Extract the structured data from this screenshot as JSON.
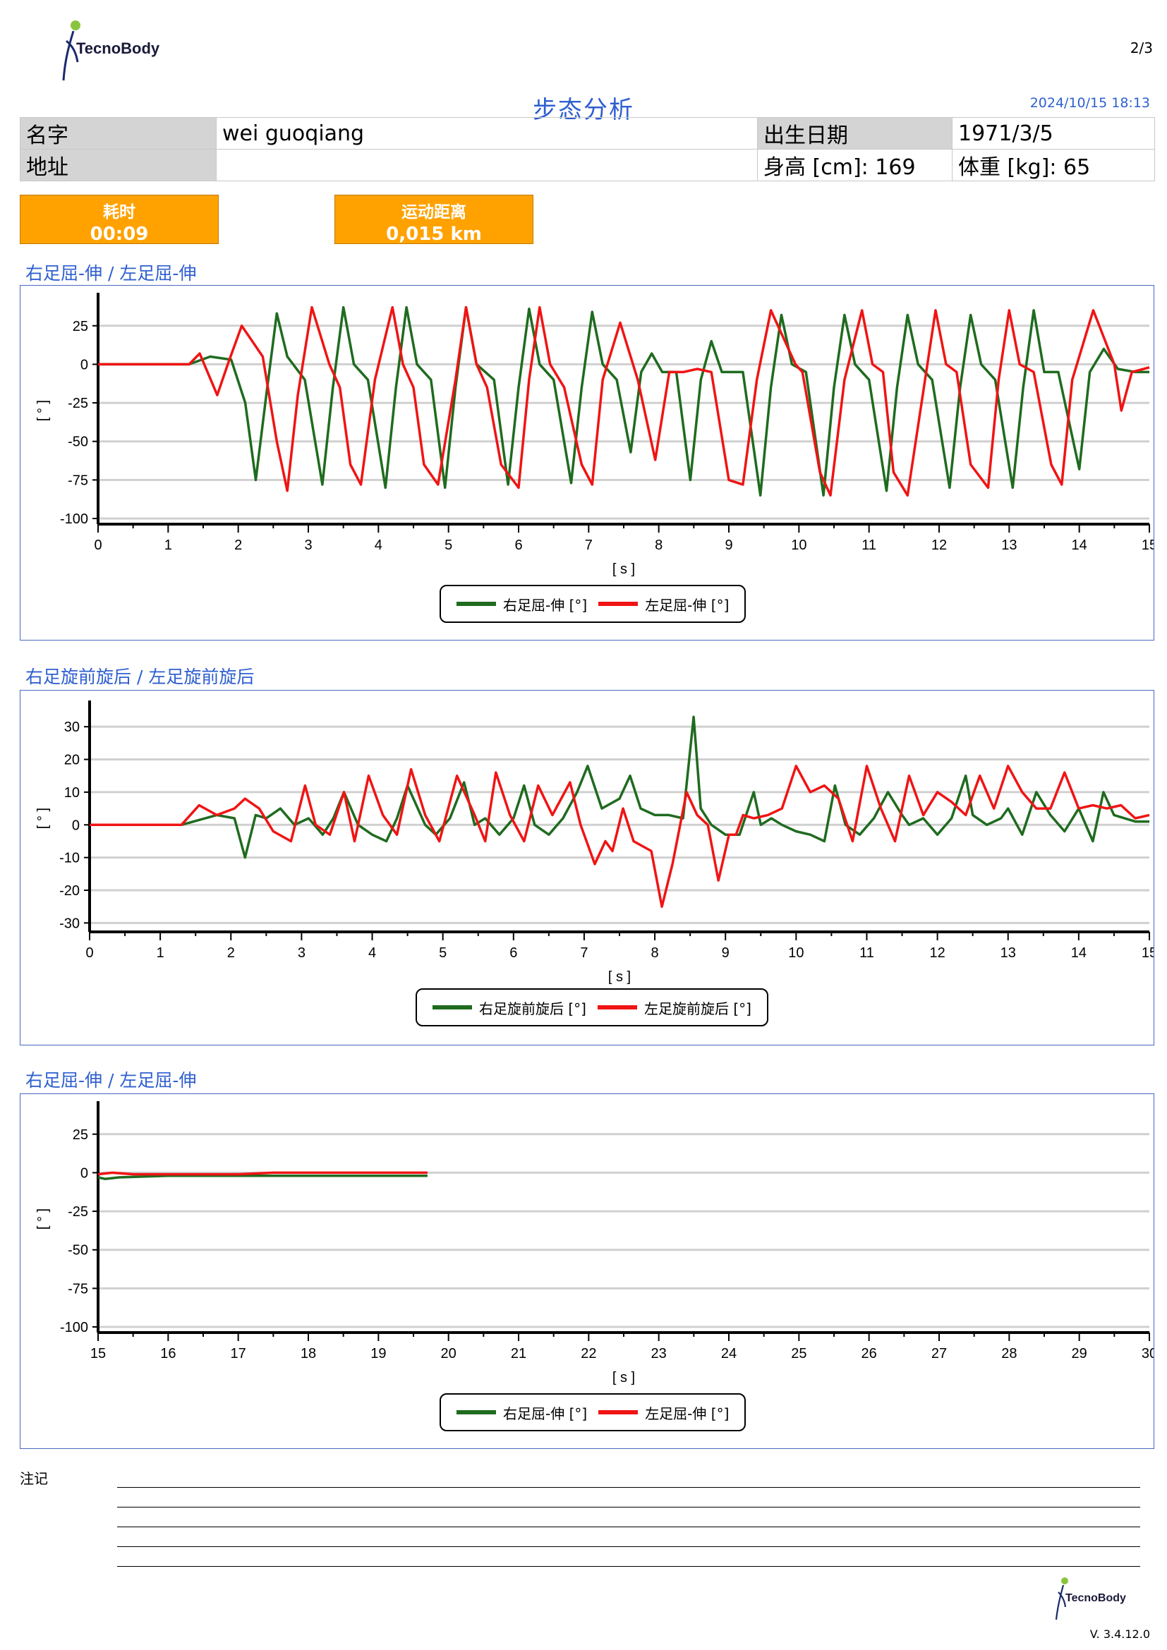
{
  "header": {
    "brand": "TecnoBody",
    "page": "2/3",
    "title": "步态分析",
    "datetime": "2024/10/15 18:13"
  },
  "patient": {
    "name_label": "名字",
    "name_value": "wei guoqiang",
    "address_label": "地址",
    "address_value": "",
    "dob_label": "出生日期",
    "dob_value": "1971/3/5",
    "height_text": "身高 [cm]: 169",
    "weight_text": "体重 [kg]: 65"
  },
  "stats": [
    {
      "label": "耗时",
      "value": "00:09"
    },
    {
      "label": "运动距离",
      "value": "0,015 km"
    }
  ],
  "colors": {
    "right": "#1f6b1f",
    "left": "#f01414",
    "accent": "#2f5fd0",
    "badge": "#ffa200"
  },
  "charts": [
    {
      "section_title": "右足屈-伸 / 左足屈-伸",
      "legend": [
        "右足屈-伸 [°]",
        "左足屈-伸 [°]"
      ],
      "ylabel": "[ ° ]",
      "xlabel": "[ s ]"
    },
    {
      "section_title": "右足旋前旋后 / 左足旋前旋后",
      "legend": [
        "右足旋前旋后 [°]",
        "左足旋前旋后 [°]"
      ],
      "ylabel": "[ ° ]",
      "xlabel": "[ s ]"
    },
    {
      "section_title": "右足屈-伸 / 左足屈-伸",
      "legend": [
        "右足屈-伸 [°]",
        "左足屈-伸 [°]"
      ],
      "ylabel": "[ ° ]",
      "xlabel": "[ s ]"
    }
  ],
  "chart_data": [
    {
      "type": "line",
      "title": "右足屈-伸 / 左足屈-伸",
      "xlabel": "[ s ]",
      "ylabel": "[ ° ]",
      "xlim": [
        0,
        15
      ],
      "ylim": [
        -100,
        40
      ],
      "xticks": [
        0,
        1,
        2,
        3,
        4,
        5,
        6,
        7,
        8,
        9,
        10,
        11,
        12,
        13,
        14,
        15
      ],
      "yticks": [
        25,
        0,
        -25,
        -50,
        -75,
        -100
      ],
      "grid": true,
      "legend_position": "bottom-center",
      "series": [
        {
          "name": "右足屈-伸 [°]",
          "color": "#1f6b1f",
          "x": [
            0,
            1.3,
            1.6,
            1.9,
            2.1,
            2.25,
            2.4,
            2.55,
            2.7,
            2.95,
            3.2,
            3.35,
            3.5,
            3.65,
            3.85,
            4.1,
            4.25,
            4.4,
            4.55,
            4.75,
            4.95,
            5.1,
            5.25,
            5.4,
            5.65,
            5.85,
            6.0,
            6.15,
            6.3,
            6.5,
            6.75,
            6.9,
            7.05,
            7.2,
            7.4,
            7.6,
            7.75,
            7.9,
            8.05,
            8.25,
            8.45,
            8.6,
            8.75,
            8.9,
            9.2,
            9.45,
            9.6,
            9.75,
            9.9,
            10.1,
            10.35,
            10.5,
            10.65,
            10.8,
            11.0,
            11.25,
            11.4,
            11.55,
            11.7,
            11.9,
            12.15,
            12.3,
            12.45,
            12.6,
            12.8,
            13.05,
            13.2,
            13.35,
            13.5,
            13.7,
            14.0,
            14.15,
            14.35,
            14.55,
            14.8,
            15.0
          ],
          "y": [
            0,
            0,
            5,
            3,
            -25,
            -75,
            -20,
            33,
            5,
            -10,
            -78,
            -15,
            37,
            0,
            -10,
            -80,
            -15,
            37,
            0,
            -10,
            -80,
            -15,
            37,
            0,
            -10,
            -78,
            -15,
            36,
            0,
            -10,
            -77,
            -15,
            34,
            0,
            -10,
            -57,
            -5,
            7,
            -5,
            -5,
            -75,
            -10,
            15,
            -5,
            -5,
            -85,
            -15,
            32,
            0,
            -5,
            -85,
            -15,
            32,
            0,
            -10,
            -82,
            -15,
            32,
            0,
            -10,
            -80,
            -15,
            32,
            0,
            -10,
            -80,
            -15,
            35,
            -5,
            -5,
            -68,
            -5,
            10,
            -3,
            -5,
            -5
          ]
        },
        {
          "name": "左足屈-伸 [°]",
          "color": "#f01414",
          "x": [
            0,
            1.3,
            1.45,
            1.7,
            1.85,
            2.05,
            2.35,
            2.55,
            2.7,
            2.85,
            3.05,
            3.3,
            3.45,
            3.6,
            3.75,
            3.95,
            4.2,
            4.35,
            4.5,
            4.65,
            4.85,
            5.1,
            5.25,
            5.4,
            5.55,
            5.75,
            6.0,
            6.15,
            6.3,
            6.45,
            6.65,
            6.9,
            7.05,
            7.2,
            7.45,
            7.7,
            7.95,
            8.15,
            8.35,
            8.55,
            8.75,
            9.0,
            9.2,
            9.4,
            9.6,
            9.95,
            10.05,
            10.3,
            10.45,
            10.65,
            10.9,
            11.05,
            11.2,
            11.35,
            11.55,
            11.8,
            11.95,
            12.1,
            12.25,
            12.45,
            12.7,
            12.85,
            13.0,
            13.15,
            13.35,
            13.6,
            13.75,
            13.9,
            14.2,
            14.5,
            14.6,
            14.75,
            15.0
          ],
          "y": [
            0,
            0,
            7,
            -20,
            0,
            25,
            5,
            -50,
            -82,
            -20,
            37,
            0,
            -15,
            -65,
            -78,
            -10,
            37,
            0,
            -15,
            -65,
            -78,
            -10,
            37,
            0,
            -15,
            -65,
            -80,
            -10,
            37,
            0,
            -15,
            -65,
            -78,
            -10,
            27,
            -10,
            -62,
            -5,
            -5,
            -3,
            -5,
            -75,
            -78,
            -10,
            35,
            0,
            -5,
            -70,
            -85,
            -10,
            35,
            0,
            -5,
            -70,
            -85,
            -10,
            35,
            0,
            -5,
            -65,
            -80,
            -10,
            35,
            0,
            -5,
            -65,
            -78,
            -10,
            35,
            0,
            -30,
            -5,
            -2
          ]
        }
      ]
    },
    {
      "type": "line",
      "title": "右足旋前旋后 / 左足旋前旋后",
      "xlabel": "[ s ]",
      "ylabel": "[ ° ]",
      "xlim": [
        0,
        15
      ],
      "ylim": [
        -31,
        35
      ],
      "xticks": [
        0,
        1,
        2,
        3,
        4,
        5,
        6,
        7,
        8,
        9,
        10,
        11,
        12,
        13,
        14,
        15
      ],
      "yticks": [
        30,
        20,
        10,
        0,
        -10,
        -20,
        -30
      ],
      "grid": true,
      "legend_position": "bottom-center",
      "series": [
        {
          "name": "右足旋前旋后 [°]",
          "color": "#1f6b1f",
          "x": [
            0,
            1.3,
            1.8,
            2.05,
            2.2,
            2.35,
            2.5,
            2.7,
            2.9,
            3.1,
            3.3,
            3.45,
            3.6,
            3.8,
            4.0,
            4.2,
            4.35,
            4.5,
            4.75,
            4.9,
            5.1,
            5.3,
            5.45,
            5.6,
            5.8,
            6.0,
            6.15,
            6.3,
            6.5,
            6.7,
            6.9,
            7.05,
            7.25,
            7.5,
            7.65,
            7.8,
            8.0,
            8.2,
            8.4,
            8.55,
            8.65,
            8.8,
            9.0,
            9.2,
            9.4,
            9.5,
            9.65,
            9.8,
            10.0,
            10.2,
            10.4,
            10.55,
            10.7,
            10.9,
            11.1,
            11.3,
            11.5,
            11.6,
            11.8,
            12.0,
            12.2,
            12.4,
            12.5,
            12.7,
            12.9,
            13.0,
            13.2,
            13.4,
            13.6,
            13.8,
            14.0,
            14.2,
            14.35,
            14.5,
            14.8,
            15.0
          ],
          "y": [
            0,
            0,
            3,
            2,
            -10,
            3,
            2,
            5,
            0,
            2,
            -3,
            2,
            10,
            0,
            -3,
            -5,
            2,
            12,
            0,
            -3,
            2,
            13,
            0,
            2,
            -3,
            2,
            12,
            0,
            -3,
            2,
            10,
            18,
            5,
            8,
            15,
            5,
            3,
            3,
            2,
            33,
            5,
            0,
            -3,
            -3,
            10,
            0,
            2,
            0,
            -2,
            -3,
            -5,
            12,
            0,
            -3,
            2,
            10,
            3,
            0,
            2,
            -3,
            2,
            15,
            3,
            0,
            2,
            5,
            -3,
            10,
            3,
            -2,
            5,
            -5,
            10,
            3,
            1,
            1
          ]
        },
        {
          "name": "左足旋前旋后 [°]",
          "color": "#f01414",
          "x": [
            0,
            1.3,
            1.55,
            1.8,
            2.05,
            2.2,
            2.4,
            2.6,
            2.85,
            3.05,
            3.2,
            3.4,
            3.6,
            3.75,
            3.95,
            4.15,
            4.35,
            4.55,
            4.75,
            4.95,
            5.2,
            5.45,
            5.6,
            5.75,
            5.95,
            6.15,
            6.35,
            6.55,
            6.8,
            6.95,
            7.15,
            7.3,
            7.4,
            7.55,
            7.7,
            7.95,
            8.1,
            8.25,
            8.45,
            8.6,
            8.75,
            8.9,
            9.05,
            9.15,
            9.25,
            9.4,
            9.6,
            9.8,
            10.0,
            10.2,
            10.4,
            10.6,
            10.8,
            11.0,
            11.2,
            11.4,
            11.6,
            11.8,
            12.0,
            12.2,
            12.4,
            12.6,
            12.8,
            13.0,
            13.2,
            13.4,
            13.6,
            13.8,
            14.0,
            14.2,
            14.4,
            14.6,
            14.8,
            15.0
          ],
          "y": [
            0,
            0,
            6,
            3,
            5,
            8,
            5,
            -2,
            -5,
            12,
            0,
            -3,
            10,
            -5,
            15,
            3,
            -3,
            17,
            3,
            -5,
            15,
            3,
            -5,
            16,
            3,
            -5,
            12,
            3,
            13,
            0,
            -12,
            -5,
            -8,
            5,
            -5,
            -8,
            -25,
            -12,
            10,
            3,
            0,
            -17,
            -3,
            -3,
            3,
            2,
            3,
            5,
            18,
            10,
            12,
            8,
            -5,
            18,
            5,
            -5,
            15,
            3,
            10,
            7,
            3,
            15,
            5,
            18,
            10,
            5,
            5,
            16,
            5,
            6,
            5,
            6,
            2,
            3
          ]
        }
      ]
    },
    {
      "type": "line",
      "title": "右足屈-伸 / 左足屈-伸",
      "xlabel": "[ s ]",
      "ylabel": "[ ° ]",
      "xlim": [
        15,
        30
      ],
      "ylim": [
        -100,
        40
      ],
      "xticks": [
        15,
        16,
        17,
        18,
        19,
        20,
        21,
        22,
        23,
        24,
        25,
        26,
        27,
        28,
        29,
        30
      ],
      "yticks": [
        25,
        0,
        -25,
        -50,
        -75,
        -100
      ],
      "grid": true,
      "legend_position": "bottom-center",
      "series": [
        {
          "name": "右足屈-伸 [°]",
          "color": "#1f6b1f",
          "x": [
            15,
            15.1,
            15.3,
            16,
            17,
            17.5,
            18,
            18.5,
            19,
            19.7
          ],
          "y": [
            -3,
            -4,
            -3,
            -2,
            -2,
            -2,
            -2,
            -2,
            -2,
            -2
          ]
        },
        {
          "name": "左足屈-伸 [°]",
          "color": "#f01414",
          "x": [
            15,
            15.2,
            15.5,
            16,
            17,
            17.5,
            18,
            18.5,
            19,
            19.7
          ],
          "y": [
            -1,
            0,
            -1,
            -1,
            -1,
            0,
            0,
            0,
            0,
            0
          ]
        }
      ]
    }
  ],
  "notes": {
    "label": "注记"
  },
  "footer": {
    "brand": "TecnoBody",
    "version": "V. 3.4.12.0"
  }
}
